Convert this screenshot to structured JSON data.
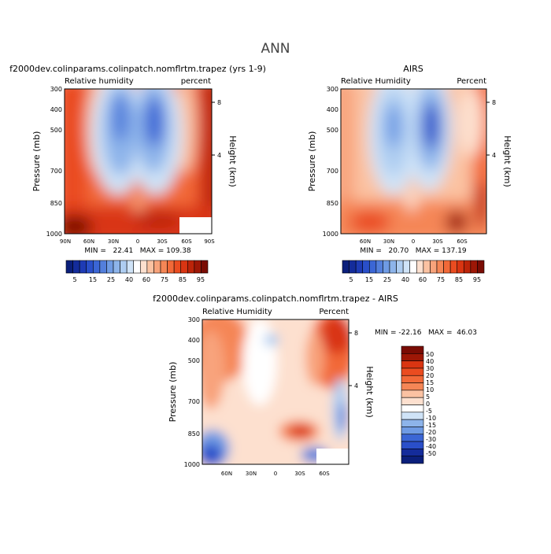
{
  "page_title": "ANN",
  "colors": {
    "positive_scale": [
      "#fde0cf",
      "#fbc2a2",
      "#f8a37b",
      "#f58656",
      "#f26938",
      "#ea4c20",
      "#d93512",
      "#bc2409",
      "#9d1706",
      "#7a0c04"
    ],
    "negative_scale": [
      "#cfe3f7",
      "#aecdf1",
      "#8db4ea",
      "#6f9be4",
      "#537fdc",
      "#3b66d5",
      "#2a4fc9",
      "#1e3bb5",
      "#142c9b",
      "#0b1f7b"
    ]
  },
  "chart_data": [
    {
      "type": "heatmap",
      "title": "f2000dev.colinparams.colinpatch.nomflrtm.trapez (yrs 1-9)",
      "left_label": "Relative humidity",
      "right_label": "percent",
      "ylabel": "Pressure (mb)",
      "y2label": "Height (km)",
      "yticks": [
        "300",
        "400",
        "500",
        "700",
        "850",
        "1000"
      ],
      "y2ticks": [
        "8",
        "4"
      ],
      "xticks": [
        "90N",
        "60N",
        "30N",
        "0",
        "30S",
        "60S",
        "90S"
      ],
      "stats": "MIN =   22.41   MAX = 109.38",
      "colorbar_labels": [
        "5",
        "15",
        "25",
        "40",
        "60",
        "75",
        "85",
        "95"
      ]
    },
    {
      "type": "heatmap",
      "title": "AIRS",
      "left_label": "Relative Humidity",
      "right_label": "Percent",
      "ylabel": "Pressure (mb)",
      "y2label": "Height (km)",
      "yticks": [
        "300",
        "400",
        "500",
        "700",
        "850",
        "1000"
      ],
      "y2ticks": [
        "8",
        "4"
      ],
      "xticks": [
        "60N",
        "30N",
        "0",
        "30S",
        "60S"
      ],
      "stats": "MIN =   20.70   MAX = 137.19",
      "colorbar_labels": [
        "5",
        "15",
        "25",
        "40",
        "60",
        "75",
        "85",
        "95"
      ]
    },
    {
      "type": "heatmap",
      "title": "f2000dev.colinparams.colinpatch.nomflrtm.trapez - AIRS",
      "left_label": "Relative Humidity",
      "right_label": "Percent",
      "ylabel": "Pressure (mb)",
      "y2label": "Height (km)",
      "yticks": [
        "300",
        "400",
        "500",
        "700",
        "850",
        "1000"
      ],
      "y2ticks": [
        "8",
        "4"
      ],
      "xticks": [
        "60N",
        "30N",
        "0",
        "30S",
        "60S"
      ],
      "stats": "MIN = -22.16   MAX =  46.03",
      "colorbar_labels": [
        "50",
        "40",
        "30",
        "20",
        "15",
        "10",
        "5",
        "0",
        "-5",
        "-10",
        "-15",
        "-20",
        "-30",
        "-40",
        "-50"
      ]
    }
  ]
}
